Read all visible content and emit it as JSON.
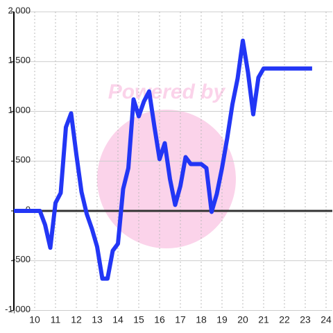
{
  "chart_data": {
    "type": "line",
    "watermark": "Powered by",
    "x": [
      9,
      10.25,
      10.5,
      10.75,
      11,
      11.25,
      11.5,
      11.75,
      12,
      12.25,
      12.5,
      12.75,
      13,
      13.25,
      13.5,
      13.75,
      14,
      14.25,
      14.5,
      14.75,
      15,
      15.25,
      15.5,
      15.75,
      16,
      16.25,
      16.5,
      16.75,
      17,
      17.25,
      17.5,
      17.75,
      18,
      18.25,
      18.5,
      18.75,
      19,
      19.25,
      19.5,
      19.75,
      20,
      20.25,
      20.5,
      20.75,
      21,
      23.33
    ],
    "series": [
      {
        "color": "#2236f5",
        "values": [
          0,
          0,
          -140,
          -370,
          80,
          180,
          840,
          980,
          570,
          190,
          -30,
          -180,
          -360,
          -680,
          -680,
          -400,
          -330,
          220,
          430,
          1120,
          950,
          1100,
          1200,
          850,
          520,
          680,
          320,
          60,
          250,
          540,
          470,
          470,
          470,
          430,
          -10,
          170,
          430,
          730,
          1070,
          1330,
          1710,
          1390,
          970,
          1340,
          1430,
          1430
        ]
      }
    ],
    "xlim": [
      9,
      24.3
    ],
    "xticks": [
      10,
      11,
      12,
      13,
      14,
      15,
      16,
      17,
      18,
      19,
      20,
      21,
      22,
      23,
      24
    ],
    "ylim": [
      -1000,
      2000
    ],
    "yticks": [
      {
        "value": -1000,
        "label": "-1,000"
      },
      -500,
      0,
      500,
      {
        "value": 1000,
        "label": "1,000"
      },
      {
        "value": 1500,
        "label": "1,500"
      },
      {
        "value": 2000,
        "label": "2,000"
      }
    ],
    "grid": true
  }
}
